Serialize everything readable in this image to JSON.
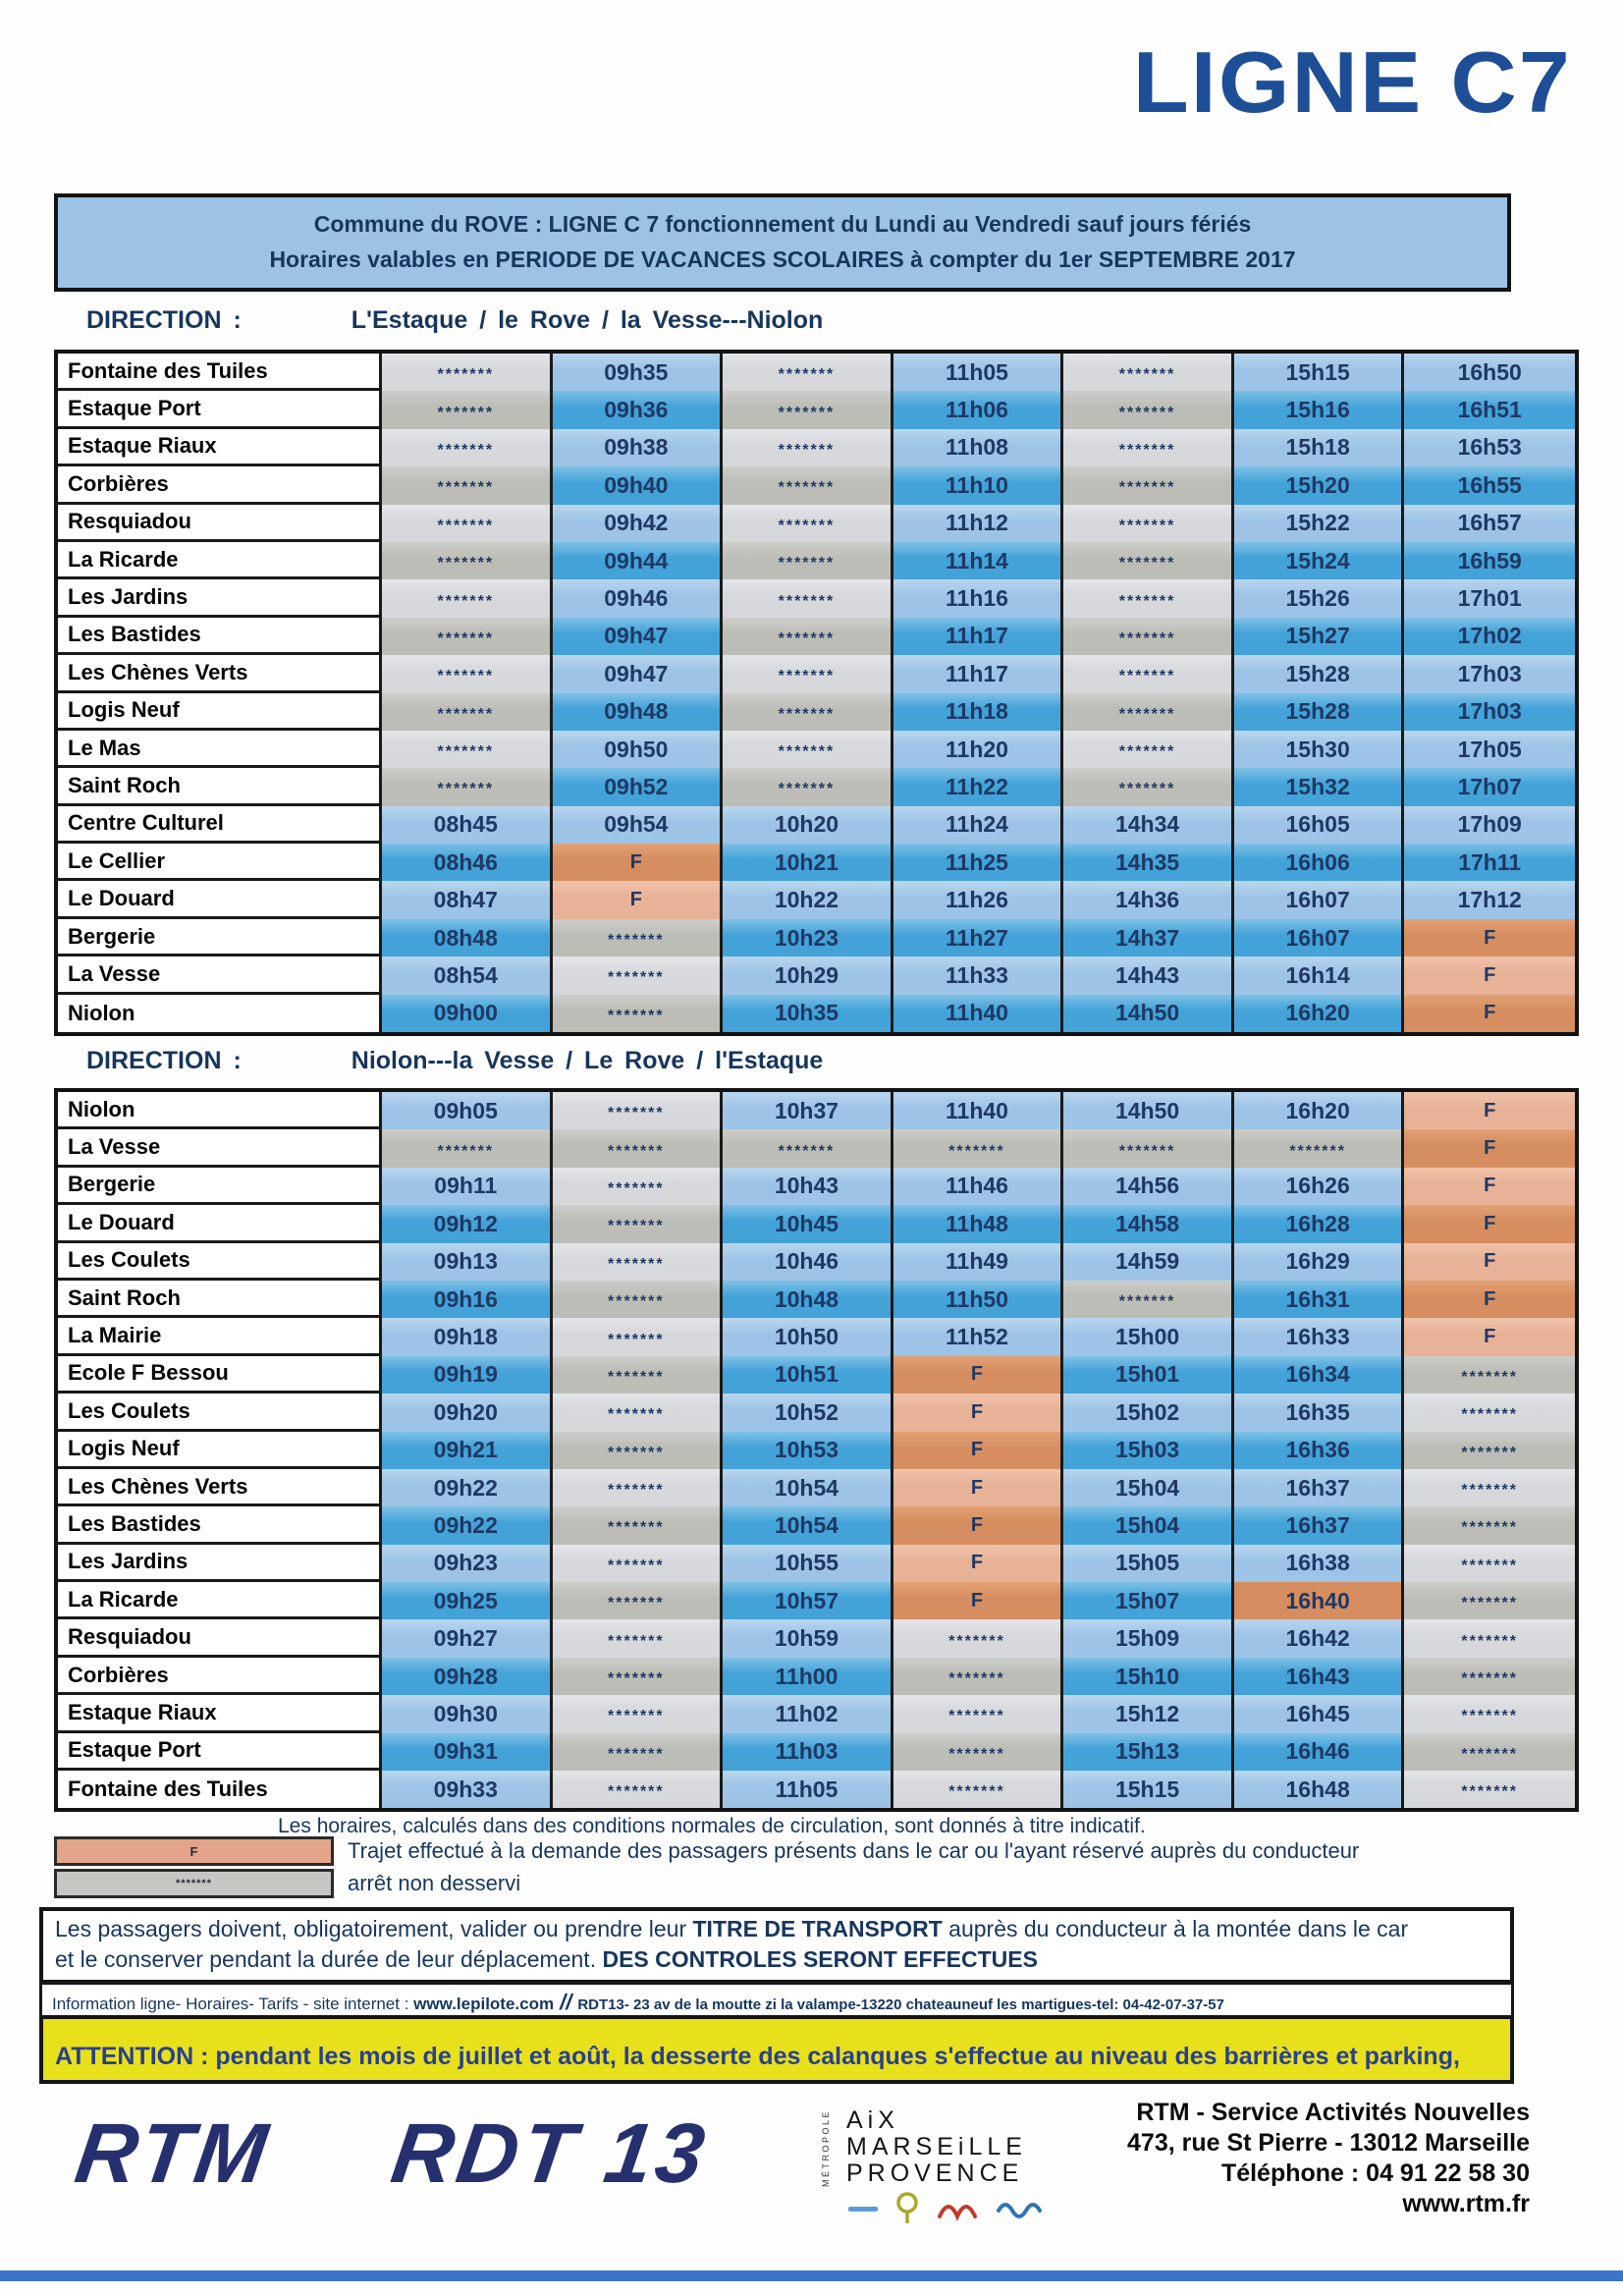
{
  "title": "LIGNE C7",
  "banner": {
    "line1": "Commune du ROVE : LIGNE C 7 fonctionnement du Lundi au Vendredi sauf jours fériés",
    "line2": "Horaires valables en PERIODE DE VACANCES SCOLAIRES à compter du 1er SEPTEMBRE 2017"
  },
  "direction1": {
    "label": "DIRECTION :",
    "route": "L'Estaque / le Rove / la Vesse---Niolon"
  },
  "direction2": {
    "label": "DIRECTION :",
    "route": "Niolon---la Vesse / Le Rove / l'Estaque"
  },
  "table1": {
    "rows": [
      {
        "stop": "Fontaine des Tuiles",
        "times": [
          "*******",
          "09h35",
          "*******",
          "11h05",
          "*******",
          "15h15",
          "16h50"
        ]
      },
      {
        "stop": "Estaque Port",
        "times": [
          "*******",
          "09h36",
          "*******",
          "11h06",
          "*******",
          "15h16",
          "16h51"
        ]
      },
      {
        "stop": "Estaque Riaux",
        "times": [
          "*******",
          "09h38",
          "*******",
          "11h08",
          "*******",
          "15h18",
          "16h53"
        ]
      },
      {
        "stop": "Corbières",
        "times": [
          "*******",
          "09h40",
          "*******",
          "11h10",
          "*******",
          "15h20",
          "16h55"
        ]
      },
      {
        "stop": "Resquiadou",
        "times": [
          "*******",
          "09h42",
          "*******",
          "11h12",
          "*******",
          "15h22",
          "16h57"
        ]
      },
      {
        "stop": "La Ricarde",
        "times": [
          "*******",
          "09h44",
          "*******",
          "11h14",
          "*******",
          "15h24",
          "16h59"
        ]
      },
      {
        "stop": "Les Jardins",
        "times": [
          "*******",
          "09h46",
          "*******",
          "11h16",
          "*******",
          "15h26",
          "17h01"
        ]
      },
      {
        "stop": "Les Bastides",
        "times": [
          "*******",
          "09h47",
          "*******",
          "11h17",
          "*******",
          "15h27",
          "17h02"
        ]
      },
      {
        "stop": "Les Chènes Verts",
        "times": [
          "*******",
          "09h47",
          "*******",
          "11h17",
          "*******",
          "15h28",
          "17h03"
        ]
      },
      {
        "stop": "Logis Neuf",
        "times": [
          "*******",
          "09h48",
          "*******",
          "11h18",
          "*******",
          "15h28",
          "17h03"
        ]
      },
      {
        "stop": "Le Mas",
        "times": [
          "*******",
          "09h50",
          "*******",
          "11h20",
          "*******",
          "15h30",
          "17h05"
        ]
      },
      {
        "stop": "Saint Roch",
        "times": [
          "*******",
          "09h52",
          "*******",
          "11h22",
          "*******",
          "15h32",
          "17h07"
        ]
      },
      {
        "stop": "Centre Culturel",
        "times": [
          "08h45",
          "09h54",
          "10h20",
          "11h24",
          "14h34",
          "16h05",
          "17h09"
        ]
      },
      {
        "stop": "Le Cellier",
        "times": [
          "08h46",
          "F",
          "10h21",
          "11h25",
          "14h35",
          "16h06",
          "17h11"
        ]
      },
      {
        "stop": "Le Douard",
        "times": [
          "08h47",
          "F",
          "10h22",
          "11h26",
          "14h36",
          "16h07",
          "17h12"
        ]
      },
      {
        "stop": "Bergerie",
        "times": [
          "08h48",
          "*******",
          "10h23",
          "11h27",
          "14h37",
          "16h07",
          "F"
        ]
      },
      {
        "stop": "La Vesse",
        "times": [
          "08h54",
          "*******",
          "10h29",
          "11h33",
          "14h43",
          "16h14",
          "F"
        ]
      },
      {
        "stop": "Niolon",
        "times": [
          "09h00",
          "*******",
          "10h35",
          "11h40",
          "14h50",
          "16h20",
          "F"
        ]
      }
    ]
  },
  "table2": {
    "rows": [
      {
        "stop": "Niolon",
        "times": [
          "09h05",
          "*******",
          "10h37",
          "11h40",
          "14h50",
          "16h20",
          "F"
        ]
      },
      {
        "stop": "La Vesse",
        "times": [
          "*******",
          "*******",
          "*******",
          "*******",
          "*******",
          "*******",
          "F"
        ]
      },
      {
        "stop": "Bergerie",
        "times": [
          "09h11",
          "*******",
          "10h43",
          "11h46",
          "14h56",
          "16h26",
          "F"
        ]
      },
      {
        "stop": "Le Douard",
        "times": [
          "09h12",
          "*******",
          "10h45",
          "11h48",
          "14h58",
          "16h28",
          "F"
        ]
      },
      {
        "stop": "Les Coulets",
        "times": [
          "09h13",
          "*******",
          "10h46",
          "11h49",
          "14h59",
          "16h29",
          "F"
        ]
      },
      {
        "stop": "Saint Roch",
        "times": [
          "09h16",
          "*******",
          "10h48",
          "11h50",
          "*******",
          "16h31",
          "F"
        ]
      },
      {
        "stop": "La Mairie",
        "times": [
          "09h18",
          "*******",
          "10h50",
          "11h52",
          "15h00",
          "16h33",
          "F"
        ]
      },
      {
        "stop": "Ecole F Bessou",
        "times": [
          "09h19",
          "*******",
          "10h51",
          "F",
          "15h01",
          "16h34",
          "*******"
        ]
      },
      {
        "stop": "Les Coulets",
        "times": [
          "09h20",
          "*******",
          "10h52",
          "F",
          "15h02",
          "16h35",
          "*******"
        ]
      },
      {
        "stop": "Logis Neuf",
        "times": [
          "09h21",
          "*******",
          "10h53",
          "F",
          "15h03",
          "16h36",
          "*******"
        ]
      },
      {
        "stop": "Les Chènes Verts",
        "times": [
          "09h22",
          "*******",
          "10h54",
          "F",
          "15h04",
          "16h37",
          "*******"
        ]
      },
      {
        "stop": "Les Bastides",
        "times": [
          "09h22",
          "*******",
          "10h54",
          "F",
          "15h04",
          "16h37",
          "*******"
        ]
      },
      {
        "stop": "Les Jardins",
        "times": [
          "09h23",
          "*******",
          "10h55",
          "F",
          "15h05",
          "16h38",
          "*******"
        ]
      },
      {
        "stop": "La Ricarde",
        "times": [
          "09h25",
          "*******",
          "10h57",
          "F",
          "15h07",
          "16h40",
          "*******"
        ],
        "hl": [
          5
        ]
      },
      {
        "stop": "Resquiadou",
        "times": [
          "09h27",
          "*******",
          "10h59",
          "*******",
          "15h09",
          "16h42",
          "*******"
        ]
      },
      {
        "stop": "Corbières",
        "times": [
          "09h28",
          "*******",
          "11h00",
          "*******",
          "15h10",
          "16h43",
          "*******"
        ]
      },
      {
        "stop": "Estaque Riaux",
        "times": [
          "09h30",
          "*******",
          "11h02",
          "*******",
          "15h12",
          "16h45",
          "*******"
        ]
      },
      {
        "stop": "Estaque Port",
        "times": [
          "09h31",
          "*******",
          "11h03",
          "*******",
          "15h13",
          "16h46",
          "*******"
        ]
      },
      {
        "stop": "Fontaine des Tuiles",
        "times": [
          "09h33",
          "*******",
          "11h05",
          "*******",
          "15h15",
          "16h48",
          "*******"
        ]
      }
    ]
  },
  "legend": {
    "footnote": "Les horaires, calculés dans des conditions normales de circulation, sont donnés à titre indicatif.",
    "f_label": "F",
    "f_text": "Trajet effectué à la demande des passagers présents dans le car ou l'ayant réservé auprès du conducteur",
    "stars_label": "*******",
    "stars_text": "arrêt non desservi"
  },
  "notice": {
    "line1_pre": "Les passagers doivent, obligatoirement, valider ou prendre leur ",
    "line1_bold": "TITRE DE TRANSPORT",
    "line1_post": " auprès du conducteur à la montée dans le car",
    "line2_pre": "et le conserver pendant la durée de leur déplacement.  ",
    "line2_bold": "DES CONTROLES SERONT EFFECTUES"
  },
  "info": {
    "pre": "Information ligne- Horaires- Tarifs -  site internet : ",
    "site": "www.lepilote.com",
    "sep": "//",
    "rest": "RDT13- 23 av de la moutte zi la valampe-13220 chateauneuf les martigues-tel: 04-42-07-37-57"
  },
  "attention": "ATTENTION : pendant les mois de juillet et août, la desserte des calanques s'effectue au niveau des barrières et parking,",
  "footer": {
    "rtm_logo": "RTM",
    "rdt_logo": "RDT 13",
    "metropole": {
      "vertical": "MÉTROPOLE",
      "line1": "AiX",
      "line2": "MARSEiLLE",
      "line3": "PROVENCE"
    },
    "address": [
      "RTM - Service Activités Nouvelles",
      "473, rue St Pierre - 13012 Marseille",
      "Téléphone : 04 91 22 58 30",
      "www.rtm.fr"
    ]
  },
  "colors": {
    "title_blue": "#1d4e96",
    "banner_blue": "#9cc3e6",
    "navy_text": "#17365d",
    "time_light": "#9dc4e7",
    "time_dark": "#43a3d9",
    "stars_light": "#d7d8dc",
    "stars_dark": "#bcbdb6",
    "ondemand_light": "#e8b296",
    "ondemand_dark": "#d68e60",
    "attention_yellow": "#e9e01c",
    "logo_navy": "#27306e",
    "bottom_bar_blue": "#3b74c9"
  }
}
